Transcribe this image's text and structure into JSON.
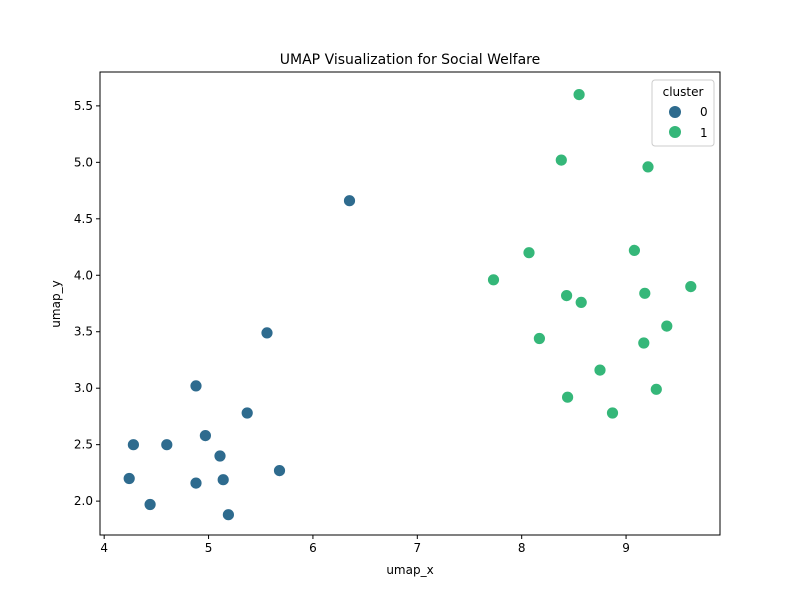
{
  "chart_data": {
    "type": "scatter",
    "title": "UMAP Visualization for Social Welfare",
    "xlabel": "umap_x",
    "ylabel": "umap_y",
    "xlim": [
      3.96,
      9.9
    ],
    "ylim": [
      1.7,
      5.8
    ],
    "xticks": [
      4,
      5,
      6,
      7,
      8,
      9
    ],
    "yticks": [
      2.0,
      2.5,
      3.0,
      3.5,
      4.0,
      4.5,
      5.0,
      5.5
    ],
    "xtick_labels": [
      "4",
      "5",
      "6",
      "7",
      "8",
      "9"
    ],
    "ytick_labels": [
      "2.0",
      "2.5",
      "3.0",
      "3.5",
      "4.0",
      "4.5",
      "5.0",
      "5.5"
    ],
    "grid": false,
    "legend": {
      "title": "cluster",
      "placement": "top-right"
    },
    "series": [
      {
        "name": "0",
        "color": "#2e6b8e",
        "points": [
          [
            6.35,
            4.66
          ],
          [
            5.56,
            3.49
          ],
          [
            4.88,
            3.02
          ],
          [
            5.37,
            2.78
          ],
          [
            4.28,
            2.5
          ],
          [
            4.6,
            2.5
          ],
          [
            4.97,
            2.58
          ],
          [
            5.11,
            2.4
          ],
          [
            4.24,
            2.2
          ],
          [
            4.88,
            2.16
          ],
          [
            5.14,
            2.19
          ],
          [
            5.68,
            2.27
          ],
          [
            4.44,
            1.97
          ],
          [
            5.19,
            1.88
          ]
        ]
      },
      {
        "name": "1",
        "color": "#35b779",
        "points": [
          [
            8.55,
            5.6
          ],
          [
            8.38,
            5.02
          ],
          [
            9.21,
            4.96
          ],
          [
            8.07,
            4.2
          ],
          [
            9.08,
            4.22
          ],
          [
            7.73,
            3.96
          ],
          [
            8.43,
            3.82
          ],
          [
            8.57,
            3.76
          ],
          [
            9.18,
            3.84
          ],
          [
            9.62,
            3.9
          ],
          [
            9.39,
            3.55
          ],
          [
            8.17,
            3.44
          ],
          [
            9.17,
            3.4
          ],
          [
            8.75,
            3.16
          ],
          [
            9.29,
            2.99
          ],
          [
            8.44,
            2.92
          ],
          [
            8.87,
            2.78
          ]
        ]
      }
    ]
  }
}
